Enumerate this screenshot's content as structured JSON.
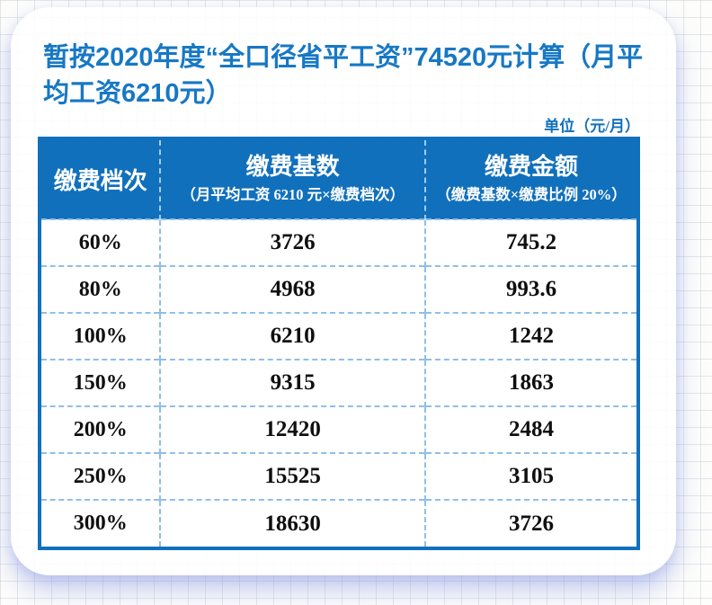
{
  "page": {
    "title": "暂按2020年度“全口径省平工资”74520元计算（月平\n均工资6210元）",
    "unit_label": "单位（元/月）"
  },
  "table": {
    "columns": [
      {
        "title": "缴费档次",
        "subtitle": ""
      },
      {
        "title": "缴费基数",
        "subtitle": "（月平均工资 6210 元×缴费档次）"
      },
      {
        "title": "缴费金额",
        "subtitle": "（缴费基数×缴费比例 20%）"
      }
    ],
    "rows": [
      [
        "60%",
        "3726",
        "745.2"
      ],
      [
        "80%",
        "4968",
        "993.6"
      ],
      [
        "100%",
        "6210",
        "1242"
      ],
      [
        "150%",
        "9315",
        "1863"
      ],
      [
        "200%",
        "12420",
        "2484"
      ],
      [
        "250%",
        "15525",
        "3105"
      ],
      [
        "300%",
        "18630",
        "3726"
      ]
    ]
  },
  "colors": {
    "accent_blue": "#1170BC",
    "title_blue": "#1778C4",
    "dashed_line_blue": "#8FBFE8",
    "body_text": "#0f0f0f"
  }
}
